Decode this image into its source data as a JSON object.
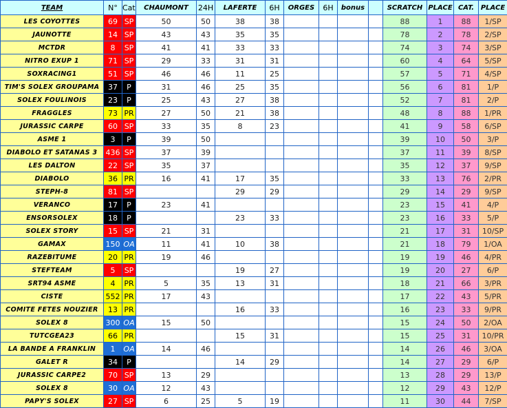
{
  "headers": [
    "TEAM",
    "N°",
    "Cat.",
    "CHAUMONT",
    "24H",
    "LAFERTE",
    "6H",
    "ORGES",
    "6H",
    "bonus",
    "",
    "SCRATCH",
    "PLACE",
    "CAT.",
    "PLACE"
  ],
  "category_colors": {
    "SP": {
      "bg": "#ff0000",
      "fg": "#ffffff"
    },
    "P": {
      "bg": "#000000",
      "fg": "#ffffff"
    },
    "PR": {
      "bg": "#ffff00",
      "fg": "#000000"
    },
    "OA": {
      "bg": "#1f6fd6",
      "fg": "#ffffff"
    }
  },
  "rows": [
    [
      "LES COYOTTES",
      "69",
      "SP",
      "50",
      "50",
      "38",
      "38",
      "",
      "",
      "",
      "",
      "88",
      "1",
      "88",
      "1/SP"
    ],
    [
      "JAUNOTTE",
      "14",
      "SP",
      "43",
      "43",
      "35",
      "35",
      "",
      "",
      "",
      "",
      "78",
      "2",
      "78",
      "2/SP"
    ],
    [
      "MCTDR",
      "8",
      "SP",
      "41",
      "41",
      "33",
      "33",
      "",
      "",
      "",
      "",
      "74",
      "3",
      "74",
      "3/SP"
    ],
    [
      "NITRO EXUP 1",
      "71",
      "SP",
      "29",
      "33",
      "31",
      "31",
      "",
      "",
      "",
      "",
      "60",
      "4",
      "64",
      "5/SP"
    ],
    [
      "SOXRACING1",
      "51",
      "SP",
      "46",
      "46",
      "11",
      "25",
      "",
      "",
      "",
      "",
      "57",
      "5",
      "71",
      "4/SP"
    ],
    [
      "TIM'S SOLEX GROUPAMA",
      "37",
      "P",
      "31",
      "46",
      "25",
      "35",
      "",
      "",
      "",
      "",
      "56",
      "6",
      "81",
      "1/P"
    ],
    [
      "SOLEX FOULINOIS",
      "23",
      "P",
      "25",
      "43",
      "27",
      "38",
      "",
      "",
      "",
      "",
      "52",
      "7",
      "81",
      "2/P"
    ],
    [
      "FRAGGLES",
      "73",
      "PR",
      "27",
      "50",
      "21",
      "38",
      "",
      "",
      "",
      "",
      "48",
      "8",
      "88",
      "1/PR"
    ],
    [
      "JURASSIC CARPE",
      "60",
      "SP",
      "33",
      "35",
      "8",
      "23",
      "",
      "",
      "",
      "",
      "41",
      "9",
      "58",
      "6/SP"
    ],
    [
      "ASME 1",
      "3",
      "P",
      "39",
      "50",
      "",
      "",
      "",
      "",
      "",
      "",
      "39",
      "10",
      "50",
      "3/P"
    ],
    [
      "DIABOLO ET SATANAS 3",
      "436",
      "SP",
      "37",
      "39",
      "",
      "",
      "",
      "",
      "",
      "",
      "37",
      "11",
      "39",
      "8/SP"
    ],
    [
      "LES DALTON",
      "22",
      "SP",
      "35",
      "37",
      "",
      "",
      "",
      "",
      "",
      "",
      "35",
      "12",
      "37",
      "9/SP"
    ],
    [
      "DIABOLO",
      "36",
      "PR",
      "16",
      "41",
      "17",
      "35",
      "",
      "",
      "",
      "",
      "33",
      "13",
      "76",
      "2/PR"
    ],
    [
      "STEPH-8",
      "81",
      "SP",
      "",
      "",
      "29",
      "29",
      "",
      "",
      "",
      "",
      "29",
      "14",
      "29",
      "9/SP"
    ],
    [
      "VERANCO",
      "17",
      "P",
      "23",
      "41",
      "",
      "",
      "",
      "",
      "",
      "",
      "23",
      "15",
      "41",
      "4/P"
    ],
    [
      "ENSORSOLEX",
      "18",
      "P",
      "",
      "",
      "23",
      "33",
      "",
      "",
      "",
      "",
      "23",
      "16",
      "33",
      "5/P"
    ],
    [
      "SOLEX STORY",
      "15",
      "SP",
      "21",
      "31",
      "",
      "",
      "",
      "",
      "",
      "",
      "21",
      "17",
      "31",
      "10/SP"
    ],
    [
      "GAMAX",
      "150",
      "OA",
      "11",
      "41",
      "10",
      "38",
      "",
      "",
      "",
      "",
      "21",
      "18",
      "79",
      "1/OA"
    ],
    [
      "RAZEBITUME",
      "20",
      "PR",
      "19",
      "46",
      "",
      "",
      "",
      "",
      "",
      "",
      "19",
      "19",
      "46",
      "4/PR"
    ],
    [
      "STEFTEAM",
      "5",
      "SP",
      "",
      "",
      "19",
      "27",
      "",
      "",
      "",
      "",
      "19",
      "20",
      "27",
      "6/P"
    ],
    [
      "SRT94 ASME",
      "4",
      "PR",
      "5",
      "35",
      "13",
      "31",
      "",
      "",
      "",
      "",
      "18",
      "21",
      "66",
      "3/PR"
    ],
    [
      "CISTE",
      "552",
      "PR",
      "17",
      "43",
      "",
      "",
      "",
      "",
      "",
      "",
      "17",
      "22",
      "43",
      "5/PR"
    ],
    [
      "COMITE FETES NOUZIER",
      "13",
      "PR",
      "",
      "",
      "16",
      "33",
      "",
      "",
      "",
      "",
      "16",
      "23",
      "33",
      "9/PR"
    ],
    [
      "SOLEX 8",
      "300",
      "OA",
      "15",
      "50",
      "",
      "",
      "",
      "",
      "",
      "",
      "15",
      "24",
      "50",
      "2/OA"
    ],
    [
      "TUTCGEA23",
      "66",
      "PR",
      "",
      "",
      "15",
      "31",
      "",
      "",
      "",
      "",
      "15",
      "25",
      "31",
      "10/PR"
    ],
    [
      "LA BANDE A FRANKLIN",
      "1",
      "OA",
      "14",
      "46",
      "",
      "",
      "",
      "",
      "",
      "",
      "14",
      "26",
      "46",
      "3/OA"
    ],
    [
      "GALET R",
      "34",
      "P",
      "",
      "",
      "14",
      "29",
      "",
      "",
      "",
      "",
      "14",
      "27",
      "29",
      "6/P"
    ],
    [
      "JURASSIC CARPE2",
      "70",
      "SP",
      "13",
      "29",
      "",
      "",
      "",
      "",
      "",
      "",
      "13",
      "28",
      "29",
      "13/P"
    ],
    [
      "SOLEX 8",
      "30",
      "OA",
      "12",
      "43",
      "",
      "",
      "",
      "",
      "",
      "",
      "12",
      "29",
      "43",
      "12/P"
    ],
    [
      "PAPY'S SOLEX",
      "27",
      "SP",
      "6",
      "25",
      "5",
      "19",
      "",
      "",
      "",
      "",
      "11",
      "30",
      "44",
      "7/SP"
    ]
  ]
}
